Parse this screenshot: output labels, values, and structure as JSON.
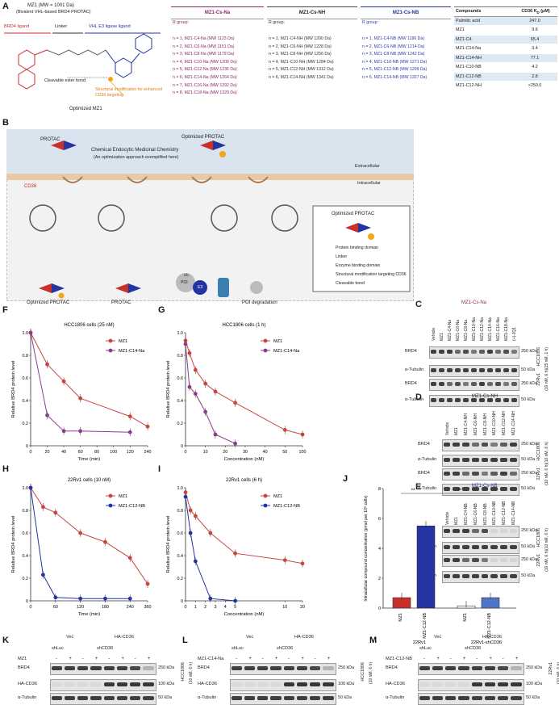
{
  "panel_labels": {
    "A": "A",
    "B": "B",
    "C": "C",
    "D": "D",
    "E": "E",
    "F": "F",
    "G": "G",
    "H": "H",
    "I": "I",
    "J": "J",
    "K": "K",
    "L": "L",
    "M": "M"
  },
  "panelA": {
    "title": "MZ1 (MW = 1001 Da)",
    "subtitle": "(Bivalent VHL-based BRD4 PROTAC)",
    "brd4_ligand": "BRD4 ligand",
    "linker": "Linker",
    "vhl_ligand": "VHL E3 ligase ligand",
    "cleavable": "Cleavable ester bond",
    "struct_mod": "Structural modification for enhanced CD36 targeting",
    "optimized": "Optimized MZ1",
    "r_group": "R group:",
    "series_na": {
      "title": "MZ1-Cs-Na",
      "rows": [
        "n = 1, MZ1-C4-Na (MW 1123 Da)",
        "n = 2, MZ1-C6-Na (MW 1151 Da)",
        "n = 3, MZ1-C8-Na (MW 1179 Da)",
        "n = 4, MZ1-C10-Na (MW 1208 Da)",
        "n = 5, MZ1-C12-Na (MW 1236 Da)",
        "n = 6, MZ1-C14-Na (MW 1264 Da)",
        "n = 7, MZ1-C16-Na (MW 1292 Da)",
        "n = 8, MZ1-C18-Na (MW 1320 Da)"
      ]
    },
    "series_nh": {
      "title": "MZ1-Cs-NH",
      "rows": [
        "n = 1, MZ1-C4-NH (MW 1200 Da)",
        "n = 2, MZ1-C6-NH (MW 1228 Da)",
        "n = 3, MZ1-C8-NH (MW 1256 Da)",
        "n = 4, MZ1-C10-NH (MW 1284 Da)",
        "n = 5, MZ1-C12-NH (MW 1312 Da)",
        "n = 6, MZ1-C14-NH (MW 1341 Da)"
      ]
    },
    "series_nb": {
      "title": "MZ1-Cs-NB",
      "rows": [
        "n = 1, MZ1-C4-NB (MW 1186 Da)",
        "n = 2, MZ1-C6-NB (MW 1214 Da)",
        "n = 3, MZ1-C8-NB (MW 1242 Da)",
        "n = 4, MZ1-C10-NB (MW 1271 Da)",
        "n = 5, MZ1-C12-NB (MW 1299 Da)",
        "n = 6, MZ1-C14-NB (MW 1327 Da)"
      ]
    },
    "kd_table": {
      "col1": "Compounds",
      "col2": "CD36 K",
      "col2_sub": "D",
      "col2_unit": " (μM)",
      "rows": [
        {
          "name": "Palmitic acid",
          "value": "247.0"
        },
        {
          "name": "MZ1",
          "value": "9.6"
        },
        {
          "name": "MZ1-C4",
          "value": "65.4"
        },
        {
          "name": "MZ1-C14-Na",
          "value": "3.4"
        },
        {
          "name": "MZ1-C14-NH",
          "value": "77.1"
        },
        {
          "name": "MZ1-C10-NB",
          "value": "4.2"
        },
        {
          "name": "MZ1-C12-NB",
          "value": "2.8"
        },
        {
          "name": "MZ1-C12-NH",
          "value": ">250.0"
        }
      ]
    }
  },
  "panelB": {
    "protac_left": "PROTAC",
    "optimized_top": "Optimized PROTAC",
    "cemc": "Chemical Endocytic Medicinal Chemistry",
    "cemc_sub": "(An optimization approach exemplified here)",
    "extracellular": "Extracellular",
    "intracellular": "Intracellular",
    "cd36": "CD36",
    "legend_title": "Optimized PROTAC",
    "legend_items": [
      "Protein binding domian",
      "Linker",
      "Enzyme binding domian",
      "Structural modification targeting CD36",
      "Cleavable bond"
    ],
    "bottom_optimized": "Optimized PROTAC",
    "bottom_protac": "PROTAC",
    "poi": "POI",
    "e3": "E3",
    "ub": "Ub",
    "poi_degradation": "POI degradation"
  },
  "panelC": {
    "title": "MZ1-Cs-Na",
    "lanes": [
      "Vehicle",
      "MZ1",
      "MZ1-C4-Na",
      "MZ1-C6-Na",
      "MZ1-C8-Na",
      "MZ1-C10-Na",
      "MZ1-C12-Na",
      "MZ1-C14-Na",
      "MZ1-C16-Na",
      "MZ1-C18-Na",
      "(+)-JQ1"
    ],
    "rows": [
      "BRD4",
      "α-Tubulin",
      "BRD4",
      "α-Tubulin"
    ],
    "mw": [
      "250 kDa",
      "50 kDa",
      "250 kDa",
      "50 kDa"
    ],
    "cell1": "HCC1806",
    "cell2": "22Rv1",
    "cond": "(10 nM, 6 h)(25 nM, 1 h)"
  },
  "panelD": {
    "title": "MZ1-Cs-NH",
    "lanes": [
      "Vehicle",
      "MZ1",
      "MZ1-C4-NH",
      "MZ1-C6-NH",
      "MZ1-C8-NH",
      "MZ1-C10-NH",
      "MZ1-C12-NH",
      "MZ1-C14-NH"
    ],
    "rows": [
      "BRD4",
      "α-Tubulin",
      "BRD4",
      "α-Tubulin"
    ],
    "mw": [
      "250 kDa",
      "50 kDa",
      "250 kDa",
      "50 kDa"
    ],
    "cell1": "HCC1806",
    "cell2": "22Rv1",
    "cond": "(10 nM, 6 h)(10 nM, 6 h)"
  },
  "panelE": {
    "title": "MZ1-Cs-NB",
    "lanes": [
      "Vehicle",
      "MZ1",
      "MZ1-C4-NB",
      "MZ1-C6-NB",
      "MZ1-C8-NB",
      "MZ1-C10-NB",
      "MZ1-C12-NB",
      "MZ1-C14-NB"
    ],
    "rows": [
      "BRD4",
      "α-Tubulin",
      "BRD4",
      "α-Tubulin"
    ],
    "mw": [
      "250 kDa",
      "50 kDa",
      "250 kDa",
      "50 kDa"
    ],
    "cell1": "HCC1806",
    "cell2": "22Rv1",
    "cond": "(10 nM, 6 h)(10 nM, 6 h)"
  },
  "blots_KLM": {
    "K": {
      "treat": "MZ1",
      "cell": "HCC1806",
      "cond": "(10 nM, 6 h)"
    },
    "L": {
      "treat": "MZ1-C14-Na",
      "cell": "HCC1806",
      "cond": "(10 nM, 6 h)"
    },
    "M": {
      "treat": "MZ1-C12-NB",
      "cell": "22Rv1",
      "cond": "(10 nM, 6 h)"
    },
    "vec": "Vec",
    "ha_cd36": "HA-CD36",
    "shluc": "shLuc",
    "shcd36": "shCD36",
    "signs": [
      "-",
      "+",
      "-",
      "+",
      "-",
      "+",
      "-",
      "+"
    ],
    "rows": [
      "BRD4",
      "HA-CD36",
      "α-Tubulin"
    ],
    "mw": [
      "250 kDa",
      "100 kDa",
      "50 kDa"
    ]
  },
  "chart_data": [
    {
      "panel": "F",
      "type": "line",
      "title": "HCC1806 cells (25 nM)",
      "xlabel": "Time (min)",
      "ylabel": "Relative BRD4 protein level",
      "x_ticks": [
        "0",
        "20",
        "40",
        "60",
        "80",
        "100",
        "120",
        "240"
      ],
      "y_ticks": [
        "0",
        "0.2",
        "0.4",
        "0.6",
        "0.8",
        "1.0"
      ],
      "ylim": [
        0,
        1.0
      ],
      "series": [
        {
          "name": "MZ1",
          "color": "#c9463d",
          "x": [
            0,
            20,
            40,
            60,
            120,
            240
          ],
          "y": [
            1.0,
            0.72,
            0.57,
            0.42,
            0.26,
            0.17
          ]
        },
        {
          "name": "MZ1-C14-Na",
          "color": "#8a3d8a",
          "x": [
            0,
            20,
            40,
            60,
            120
          ],
          "y": [
            1.0,
            0.27,
            0.13,
            0.13,
            0.12
          ]
        }
      ]
    },
    {
      "panel": "G",
      "type": "line",
      "title": "HCC1806 cells (1 h)",
      "xlabel": "Concentration (nM)",
      "ylabel": "Relative BRD4 protein level",
      "x_ticks": [
        "0",
        "10",
        "20",
        "30",
        "40",
        "50",
        "100"
      ],
      "y_ticks": [
        "0",
        "0.2",
        "0.4",
        "0.6",
        "0.8",
        "1.0"
      ],
      "ylim": [
        0,
        1.0
      ],
      "series": [
        {
          "name": "MZ1",
          "color": "#c9463d",
          "x": [
            0,
            2,
            5,
            10,
            15,
            25,
            50,
            100
          ],
          "y": [
            0.93,
            0.82,
            0.67,
            0.55,
            0.48,
            0.38,
            0.14,
            0.1
          ]
        },
        {
          "name": "MZ1-C14-Na",
          "color": "#8a3d8a",
          "x": [
            0,
            2,
            5,
            10,
            15,
            25
          ],
          "y": [
            0.9,
            0.52,
            0.46,
            0.3,
            0.1,
            0.02
          ]
        }
      ]
    },
    {
      "panel": "H",
      "type": "line",
      "title": "22Rv1 cells (10 nM)",
      "xlabel": "Time (min)",
      "ylabel": "Relative BRD4 protein level",
      "x_ticks": [
        "0",
        "60",
        "120",
        "180",
        "240",
        "360"
      ],
      "y_ticks": [
        "0",
        "0.2",
        "0.4",
        "0.6",
        "0.8",
        "1.0"
      ],
      "ylim": [
        0,
        1.0
      ],
      "series": [
        {
          "name": "MZ1",
          "color": "#c9463d",
          "x": [
            0,
            30,
            60,
            120,
            180,
            240,
            360
          ],
          "y": [
            1.0,
            0.83,
            0.78,
            0.6,
            0.52,
            0.38,
            0.15
          ]
        },
        {
          "name": "MZ1-C12-NB",
          "color": "#2434a0",
          "x": [
            0,
            30,
            60,
            120,
            180,
            240
          ],
          "y": [
            1.0,
            0.23,
            0.03,
            0.02,
            0.02,
            0.02
          ]
        }
      ]
    },
    {
      "panel": "I",
      "type": "line",
      "title": "22Rv1 cells (6 h)",
      "xlabel": "Concentration (nM)",
      "ylabel": "Relative BRD4 protein level",
      "x_ticks": [
        "0",
        "1",
        "2",
        "3",
        "4",
        "5",
        "10",
        "20"
      ],
      "y_ticks": [
        "0",
        "0.2",
        "0.4",
        "0.6",
        "0.8",
        "1.0"
      ],
      "ylim": [
        0,
        1.0
      ],
      "series": [
        {
          "name": "MZ1",
          "color": "#c9463d",
          "x": [
            0,
            0.5,
            1,
            2.5,
            5,
            10,
            20
          ],
          "y": [
            0.96,
            0.8,
            0.75,
            0.6,
            0.42,
            0.36,
            0.33
          ]
        },
        {
          "name": "MZ1-C12-NB",
          "color": "#2434a0",
          "x": [
            0,
            0.5,
            1,
            2.5,
            5
          ],
          "y": [
            0.92,
            0.6,
            0.35,
            0.02,
            0.0
          ]
        }
      ]
    },
    {
      "panel": "J",
      "type": "bar",
      "ylabel": "Intracellular compound concentration (pmol per 10⁶ cells)",
      "categories": [
        "MZ1",
        "MZ1-C12-NB",
        "MZ1",
        "MZ1-C12-NB"
      ],
      "groups": [
        "22Rv1",
        "22Rv1-shCD36"
      ],
      "values": [
        0.7,
        5.5,
        0.15,
        0.7
      ],
      "colors": [
        "#c9302c",
        "#2434a0",
        "#ffffff",
        "#4d76c8"
      ],
      "y_ticks": [
        "0",
        "2",
        "4",
        "6",
        "8"
      ],
      "ylim": [
        0,
        8
      ],
      "significance": [
        "**",
        "**"
      ]
    }
  ]
}
